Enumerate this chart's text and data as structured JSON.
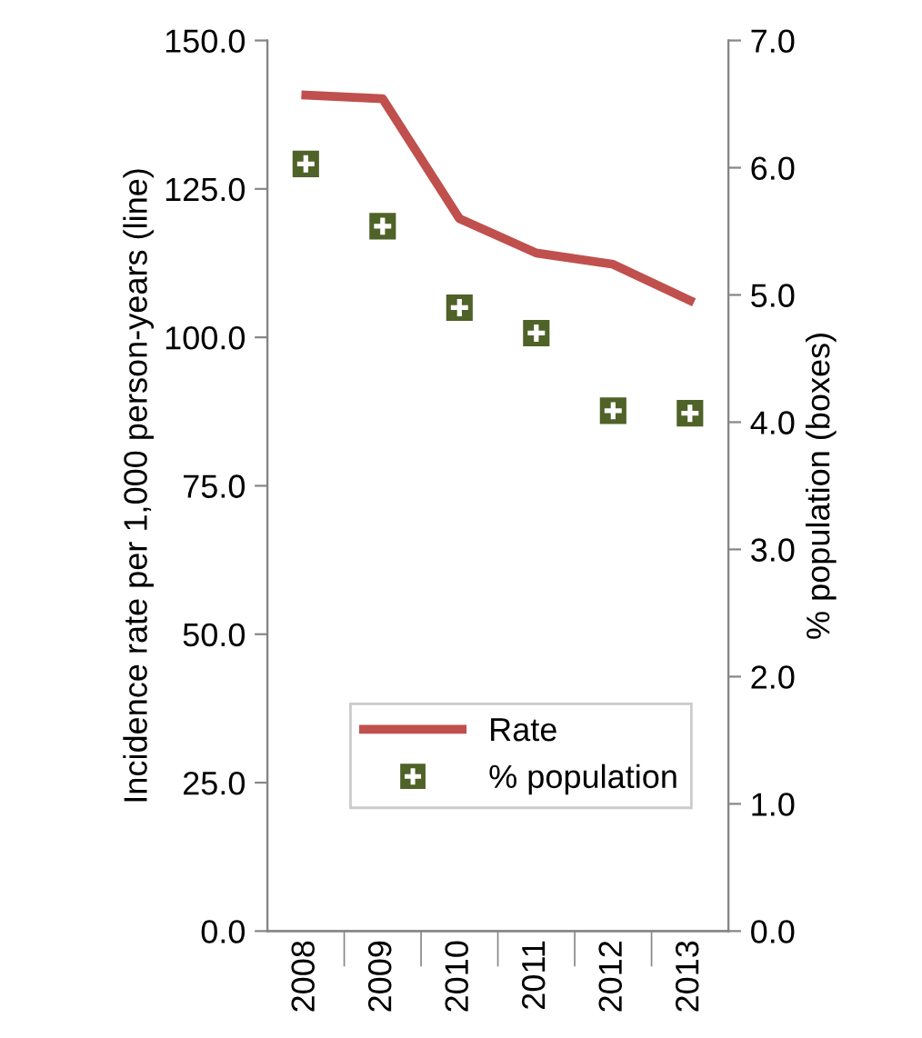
{
  "chart_data": {
    "type": "line",
    "categories": [
      "2008",
      "2009",
      "2010",
      "2011",
      "2012",
      "2013"
    ],
    "ylabel": "Incidence rate per 1,000 person-years (line)",
    "y2label": "% population (boxes)",
    "series": [
      {
        "name": "Rate",
        "color": "#c0504d",
        "values": [
          140.8,
          140.2,
          120.0,
          114.2,
          112.3,
          106.2
        ]
      },
      {
        "name": "% population",
        "type": "scatter",
        "axis": "y2",
        "marker": "square",
        "color": "#4f6228",
        "values": [
          6.03,
          5.54,
          4.9,
          4.7,
          4.09,
          4.07
        ]
      }
    ],
    "ylim": [
      0,
      150
    ],
    "yticks": [
      {
        "value": 0,
        "label": "0.0"
      },
      {
        "value": 25,
        "label": "25.0"
      },
      {
        "value": 50,
        "label": "50.0"
      },
      {
        "value": 75,
        "label": "75.0"
      },
      {
        "value": 100,
        "label": "100.0"
      },
      {
        "value": 125,
        "label": "125.0"
      },
      {
        "value": 150,
        "label": "150.0"
      }
    ],
    "y2lim": [
      0,
      7
    ],
    "y2ticks": [
      {
        "value": 0,
        "label": "0.0"
      },
      {
        "value": 1,
        "label": "1.0"
      },
      {
        "value": 2,
        "label": "2.0"
      },
      {
        "value": 3,
        "label": "3.0"
      },
      {
        "value": 4,
        "label": "4.0"
      },
      {
        "value": 5,
        "label": "5.0"
      },
      {
        "value": 6,
        "label": "6.0"
      },
      {
        "value": 7,
        "label": "7.0"
      }
    ],
    "grid": false,
    "legend": "bottom"
  }
}
